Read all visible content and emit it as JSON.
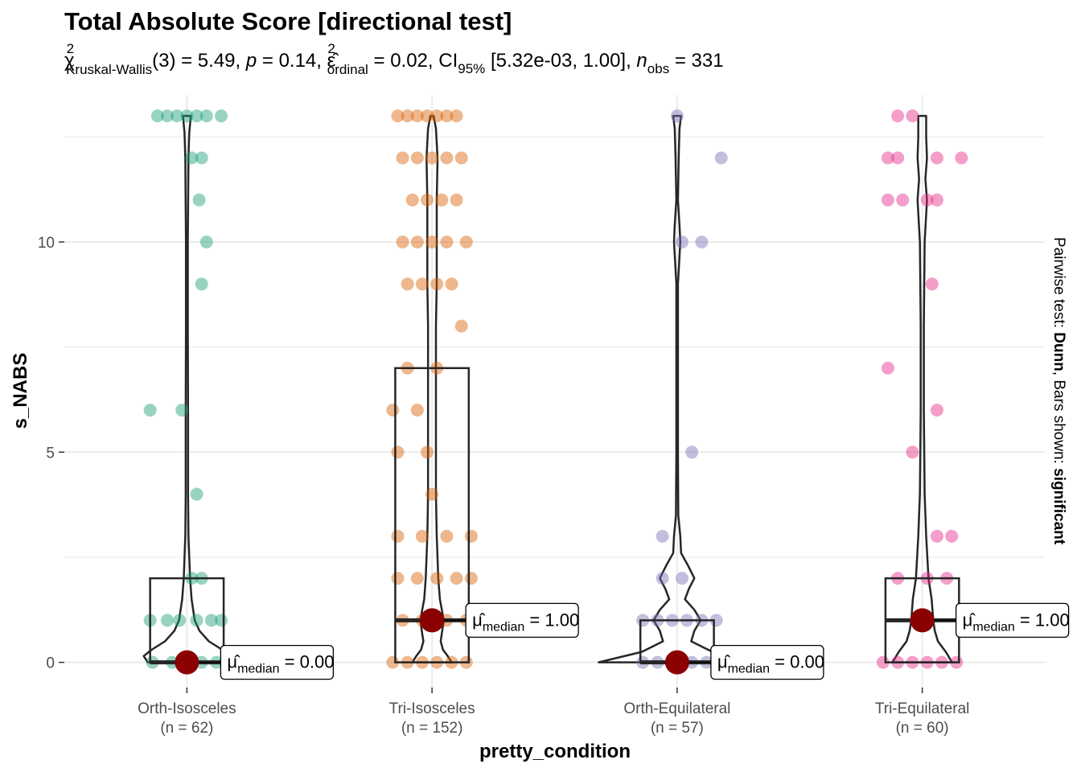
{
  "chart_data": {
    "type": "violin",
    "title": "Total Absolute Score [directional test]",
    "subtitle": {
      "chi_label": "χ",
      "chi_sup": "2",
      "chi_sub": "Kruskal-Wallis",
      "df": "(3) = 5.49, ",
      "p_label": "p",
      "p_val": " = 0.14, ",
      "eps_label": "ε̂",
      "eps_sup": "2",
      "eps_sub": "ordinal",
      "eps_val": " = 0.02, CI",
      "ci_sub": "95%",
      "ci_val": " [5.32e-03, 1.00], ",
      "n_label": "n",
      "n_sub": "obs",
      "n_val": " = 331"
    },
    "xlabel": "pretty_condition",
    "ylabel": "s_NABS",
    "caption_prefix": "Pairwise test: ",
    "caption_test": "Dunn",
    "caption_mid": ", Bars shown: ",
    "caption_bars": "significant",
    "ylim": [
      -0.6,
      13.5
    ],
    "yticks": [
      0,
      5,
      10
    ],
    "categories": [
      "Orth-Isosceles",
      "Tri-Isosceles",
      "Orth-Equilateral",
      "Tri-Equilateral"
    ],
    "n_labels": [
      "(n = 62)",
      "(n = 152)",
      "(n = 57)",
      "(n = 60)"
    ],
    "colors": [
      "#1b9e77",
      "#d95f02",
      "#7570b3",
      "#e7298a"
    ],
    "median_color": "#8b0000",
    "median_labels": [
      {
        "hat": "μ̂",
        "sub": "median",
        "val": " = 0.00"
      },
      {
        "hat": "μ̂",
        "sub": "median",
        "val": " = 1.00"
      },
      {
        "hat": "μ̂",
        "sub": "median",
        "val": " = 0.00"
      },
      {
        "hat": "μ̂",
        "sub": "median",
        "val": " = 1.00"
      }
    ],
    "boxes": [
      {
        "q1": 0,
        "median": 0,
        "q3": 2,
        "max": 13
      },
      {
        "q1": 0,
        "median": 1,
        "q3": 7,
        "max": 13
      },
      {
        "q1": 0,
        "median": 0,
        "q3": 1,
        "max": 13
      },
      {
        "q1": 0,
        "median": 1,
        "q3": 2,
        "max": 13
      }
    ],
    "violins": [
      [
        [
          0,
          0.5
        ],
        [
          0.15,
          0.55
        ],
        [
          0.3,
          0.45
        ],
        [
          0.5,
          0.28
        ],
        [
          0.75,
          0.16
        ],
        [
          1,
          0.1
        ],
        [
          1.5,
          0.06
        ],
        [
          2,
          0.04
        ],
        [
          2.5,
          0.03
        ],
        [
          3,
          0.02
        ],
        [
          4,
          0.015
        ],
        [
          6,
          0.015
        ],
        [
          8,
          0.012
        ],
        [
          10,
          0.012
        ],
        [
          12,
          0.02
        ],
        [
          12.6,
          0.03
        ],
        [
          13,
          0.05
        ]
      ],
      [
        [
          0,
          0.25
        ],
        [
          0.15,
          0.2
        ],
        [
          0.3,
          0.14
        ],
        [
          0.5,
          0.11
        ],
        [
          0.75,
          0.13
        ],
        [
          1,
          0.15
        ],
        [
          1.5,
          0.1
        ],
        [
          2,
          0.08
        ],
        [
          3,
          0.06
        ],
        [
          4,
          0.05
        ],
        [
          5,
          0.05
        ],
        [
          6,
          0.05
        ],
        [
          7,
          0.05
        ],
        [
          8,
          0.05
        ],
        [
          9,
          0.06
        ],
        [
          10,
          0.06
        ],
        [
          11,
          0.06
        ],
        [
          12,
          0.07
        ],
        [
          12.7,
          0.05
        ],
        [
          13,
          0.02
        ]
      ],
      [
        [
          0,
          1
        ],
        [
          0.25,
          0.45
        ],
        [
          0.5,
          0.18
        ],
        [
          0.75,
          0.22
        ],
        [
          1,
          0.3
        ],
        [
          1.25,
          0.22
        ],
        [
          1.5,
          0.1
        ],
        [
          1.75,
          0.15
        ],
        [
          2,
          0.22
        ],
        [
          2.3,
          0.14
        ],
        [
          2.6,
          0.05
        ],
        [
          3,
          0.04
        ],
        [
          3.5,
          0.015
        ],
        [
          5,
          0.01
        ],
        [
          7,
          0.01
        ],
        [
          9,
          0.01
        ],
        [
          10,
          0.04
        ],
        [
          10.4,
          0.03
        ],
        [
          11,
          0.01
        ],
        [
          12,
          0.02
        ],
        [
          12.7,
          0.03
        ],
        [
          13,
          0.05
        ]
      ],
      [
        [
          0,
          0.38
        ],
        [
          0.25,
          0.3
        ],
        [
          0.5,
          0.2
        ],
        [
          0.75,
          0.16
        ],
        [
          1,
          0.14
        ],
        [
          1.5,
          0.12
        ],
        [
          2,
          0.08
        ],
        [
          3,
          0.05
        ],
        [
          4,
          0.03
        ],
        [
          6,
          0.02
        ],
        [
          8,
          0.02
        ],
        [
          10,
          0.03
        ],
        [
          11,
          0.06
        ],
        [
          11.5,
          0.04
        ],
        [
          12,
          0.06
        ],
        [
          12.5,
          0.05
        ],
        [
          13,
          0.05
        ]
      ]
    ],
    "points": [
      [
        [
          -0.12,
          13
        ],
        [
          -0.08,
          13
        ],
        [
          -0.04,
          13
        ],
        [
          0,
          13
        ],
        [
          0.04,
          13
        ],
        [
          0.08,
          13
        ],
        [
          0.14,
          13
        ],
        [
          0.02,
          12
        ],
        [
          0.06,
          12
        ],
        [
          0.05,
          11
        ],
        [
          0.08,
          10
        ],
        [
          0.06,
          9
        ],
        [
          -0.15,
          6
        ],
        [
          -0.02,
          6
        ],
        [
          0.04,
          4
        ],
        [
          0.02,
          2
        ],
        [
          0.06,
          2
        ],
        [
          -0.15,
          1
        ],
        [
          -0.08,
          1
        ],
        [
          -0.03,
          1
        ],
        [
          0.04,
          1
        ],
        [
          0.1,
          1
        ],
        [
          0.14,
          1
        ],
        [
          -0.14,
          0
        ],
        [
          -0.06,
          0
        ],
        [
          0,
          0
        ],
        [
          0.06,
          0
        ],
        [
          0.12,
          0
        ]
      ],
      [
        [
          -0.14,
          13
        ],
        [
          -0.1,
          13
        ],
        [
          -0.06,
          13
        ],
        [
          -0.02,
          13
        ],
        [
          0.02,
          13
        ],
        [
          0.06,
          13
        ],
        [
          0.1,
          13
        ],
        [
          -0.12,
          12
        ],
        [
          -0.06,
          12
        ],
        [
          0,
          12
        ],
        [
          0.06,
          12
        ],
        [
          0.12,
          12
        ],
        [
          -0.08,
          11
        ],
        [
          -0.02,
          11
        ],
        [
          0.04,
          11
        ],
        [
          0.1,
          11
        ],
        [
          -0.12,
          10
        ],
        [
          -0.06,
          10
        ],
        [
          0,
          10
        ],
        [
          0.06,
          10
        ],
        [
          0.14,
          10
        ],
        [
          -0.1,
          9
        ],
        [
          -0.04,
          9
        ],
        [
          0.02,
          9
        ],
        [
          0.08,
          9
        ],
        [
          0.12,
          8
        ],
        [
          -0.1,
          7
        ],
        [
          0.02,
          7
        ],
        [
          -0.16,
          6
        ],
        [
          -0.06,
          6
        ],
        [
          -0.14,
          5
        ],
        [
          -0.02,
          5
        ],
        [
          0.0,
          4
        ],
        [
          -0.14,
          3
        ],
        [
          -0.04,
          3
        ],
        [
          0.06,
          3
        ],
        [
          0.16,
          3
        ],
        [
          -0.14,
          2
        ],
        [
          -0.06,
          2
        ],
        [
          0.02,
          2
        ],
        [
          0.1,
          2
        ],
        [
          0.16,
          2
        ],
        [
          -0.12,
          1
        ],
        [
          -0.04,
          1
        ],
        [
          0.06,
          1
        ],
        [
          0.14,
          1
        ],
        [
          -0.16,
          0
        ],
        [
          -0.1,
          0
        ],
        [
          -0.04,
          0
        ],
        [
          0.02,
          0
        ],
        [
          0.08,
          0
        ],
        [
          0.14,
          0
        ]
      ],
      [
        [
          0,
          13
        ],
        [
          0.18,
          12
        ],
        [
          0.1,
          10
        ],
        [
          0.02,
          10
        ],
        [
          0.06,
          5
        ],
        [
          -0.06,
          3
        ],
        [
          -0.06,
          2
        ],
        [
          0.02,
          2
        ],
        [
          -0.14,
          1
        ],
        [
          -0.08,
          1
        ],
        [
          -0.02,
          1
        ],
        [
          0.04,
          1
        ],
        [
          0.1,
          1
        ],
        [
          0.16,
          1
        ],
        [
          -0.14,
          0
        ],
        [
          -0.08,
          0
        ],
        [
          -0.02,
          0
        ],
        [
          0.06,
          0
        ],
        [
          0.12,
          0
        ]
      ],
      [
        [
          -0.1,
          13
        ],
        [
          -0.04,
          13
        ],
        [
          -0.14,
          12
        ],
        [
          -0.1,
          12
        ],
        [
          0.06,
          12
        ],
        [
          0.16,
          12
        ],
        [
          -0.14,
          11
        ],
        [
          -0.08,
          11
        ],
        [
          0.02,
          11
        ],
        [
          0.06,
          11
        ],
        [
          0.04,
          9
        ],
        [
          -0.14,
          7
        ],
        [
          0.06,
          6
        ],
        [
          -0.04,
          5
        ],
        [
          0.06,
          3
        ],
        [
          0.12,
          3
        ],
        [
          -0.1,
          2
        ],
        [
          0.02,
          2
        ],
        [
          0.1,
          2
        ],
        [
          -0.16,
          0
        ],
        [
          -0.1,
          0
        ],
        [
          -0.04,
          0
        ],
        [
          0.02,
          0
        ],
        [
          0.08,
          0
        ],
        [
          0.14,
          0
        ]
      ]
    ]
  }
}
